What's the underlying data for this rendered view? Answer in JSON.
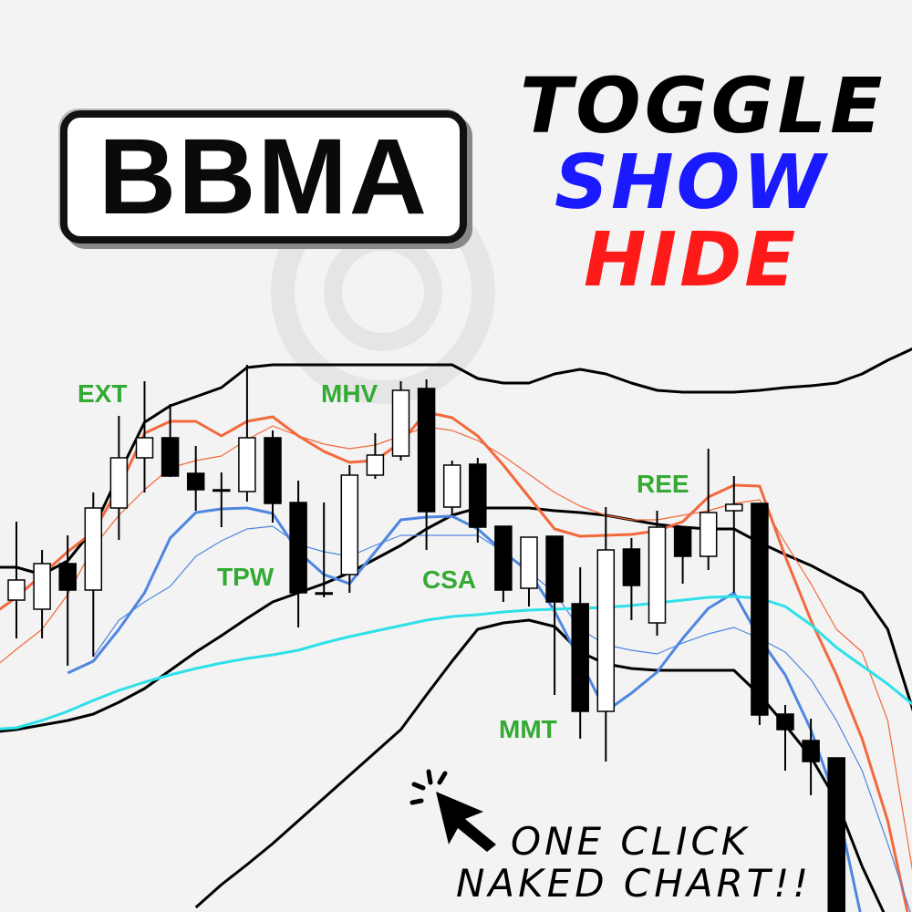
{
  "logo": {
    "text": "BBMA"
  },
  "headline": {
    "line1": "TOGGLE",
    "line2": "SHOW",
    "line3": "HIDE",
    "line2_color": "#1a1aff",
    "line3_color": "#ff1a1a"
  },
  "callout": {
    "line1": "ONE CLICK",
    "line2": "NAKED CHART!!",
    "icon": "cursor-click-icon"
  },
  "colors": {
    "annotation": "#33aa33",
    "bull_body": "#ffffff",
    "bear_body": "#000000",
    "background": "#f3f3f3"
  },
  "chart_data": {
    "type": "candlestick",
    "grid": false,
    "axes_shown": false,
    "annotations": [
      "EXT",
      "MHV",
      "TPW",
      "CSA",
      "REE",
      "MMT"
    ],
    "candles": [
      [
        34.2,
        42.8,
        30.0,
        36.4
      ],
      [
        33.2,
        39.7,
        30.0,
        38.2
      ],
      [
        38.2,
        41.3,
        27.0,
        35.3
      ],
      [
        35.3,
        46.0,
        28.0,
        44.3
      ],
      [
        44.3,
        54.4,
        40.8,
        49.8
      ],
      [
        49.8,
        58.2,
        46.0,
        52.0
      ],
      [
        52.0,
        55.7,
        47.7,
        47.8
      ],
      [
        48.1,
        51.1,
        44.0,
        46.3
      ],
      [
        46.3,
        48.2,
        42.2,
        46.3
      ],
      [
        46.1,
        60.0,
        45.0,
        52.0
      ],
      [
        52.0,
        52.8,
        42.7,
        44.8
      ],
      [
        44.9,
        47.3,
        31.2,
        35.0
      ],
      [
        35.0,
        44.9,
        34.5,
        35.0
      ],
      [
        37.0,
        49.0,
        35.0,
        47.9
      ],
      [
        47.9,
        52.5,
        47.5,
        50.1
      ],
      [
        50.0,
        58.2,
        49.5,
        57.2
      ],
      [
        57.4,
        58.4,
        39.7,
        43.9
      ],
      [
        44.4,
        49.5,
        43.5,
        49.0
      ],
      [
        49.1,
        49.8,
        40.5,
        42.2
      ],
      [
        42.3,
        42.3,
        34.0,
        35.3
      ],
      [
        35.5,
        41.1,
        33.5,
        41.1
      ],
      [
        41.2,
        41.2,
        23.8,
        34.0
      ],
      [
        33.8,
        37.8,
        19.0,
        22.0
      ],
      [
        22.0,
        44.4,
        16.5,
        39.7
      ],
      [
        39.8,
        41.0,
        32.0,
        35.8
      ],
      [
        31.7,
        44.0,
        30.3,
        42.2
      ],
      [
        42.2,
        42.2,
        36.0,
        39.0
      ],
      [
        39.0,
        50.8,
        37.5,
        43.8
      ],
      [
        44.0,
        47.8,
        35.0,
        44.7
      ],
      [
        44.8,
        44.8,
        20.5,
        21.6
      ],
      [
        21.7,
        22.7,
        15.5,
        20.0
      ],
      [
        18.8,
        21.2,
        12.8,
        16.5
      ],
      [
        16.9,
        16.9,
        0,
        0
      ]
    ],
    "candle_fields": [
      "open",
      "high",
      "low",
      "close"
    ],
    "series": [
      {
        "color": "#000000",
        "width": 3,
        "start_bar": -1,
        "values": [
          37.8,
          37.8,
          37.0,
          38.5,
          42.0,
          48.0,
          53.7,
          55.5,
          56.5,
          57.5,
          59.7,
          60,
          60,
          60,
          60,
          60,
          60,
          60,
          60,
          58.5,
          58,
          58,
          59,
          59.5,
          59,
          58,
          57.2,
          57,
          57,
          57,
          57.2,
          57.5,
          57.7,
          58,
          59,
          60.5,
          61.8
        ]
      },
      {
        "color": "#000000",
        "width": 3,
        "start_bar": -1,
        "values": [
          19.7,
          20,
          20.5,
          21,
          21.7,
          23,
          24.5,
          26.5,
          28.5,
          30.3,
          32.2,
          34,
          35,
          36,
          37.2,
          38.7,
          40.2,
          42,
          43.5,
          44.3,
          44.3,
          44.3,
          44,
          43.8,
          43.5,
          43,
          42.5,
          42.2,
          42,
          42,
          40.5,
          39.2,
          38,
          36.5,
          35,
          31,
          22
        ]
      },
      {
        "color": "#000000",
        "width": 3,
        "start_bar": 7,
        "values": [
          0.5,
          3,
          5.2,
          7.5,
          10,
          12.5,
          15,
          17.5,
          20,
          23.8,
          27.5,
          31,
          31.7,
          32,
          31.3,
          28.5,
          27.2,
          26.7,
          26.5,
          26.5,
          26.5,
          26.5,
          23.8,
          20.5,
          17,
          12.2,
          5,
          -1
        ]
      },
      {
        "color": "#f2693c",
        "width": 3,
        "start_bar": -1,
        "values": [
          32.5,
          34.5,
          37,
          39.5,
          41.7,
          46.5,
          52.5,
          53.8,
          53.8,
          52.2,
          53.8,
          54.3,
          52.2,
          50.5,
          49.3,
          49.5,
          51.5,
          54.8,
          54.2,
          52.2,
          49,
          45.5,
          42,
          41.2,
          41.3,
          41.4,
          41.8,
          42.8,
          45.5,
          46.8,
          46.7,
          39,
          32,
          26,
          19,
          10,
          -3
        ]
      },
      {
        "color": "#f2693c",
        "width": 1.2,
        "start_bar": -1,
        "values": [
          26.5,
          28.8,
          31,
          34.8,
          40,
          43.5,
          46.3,
          48.7,
          49.5,
          50,
          51.8,
          53.3,
          52.2,
          51.3,
          50.8,
          51.2,
          52.2,
          53.2,
          52.8,
          51.7,
          50,
          48,
          46,
          44.5,
          43.5,
          43,
          43,
          43.5,
          44,
          44.8,
          45.2,
          40.5,
          36,
          31,
          28.5,
          21,
          4
        ]
      },
      {
        "color": "#4f86e0",
        "width": 3,
        "start_bar": 2,
        "values": [
          26.2,
          27.5,
          31,
          35,
          41,
          43.8,
          44.2,
          44.3,
          43.7,
          39.5,
          37,
          36,
          39.5,
          43,
          43.3,
          43.4,
          42,
          39.5,
          37.3,
          33,
          27.5,
          22,
          24,
          26.3,
          30,
          33.3,
          35,
          30,
          26,
          20,
          12,
          -1
        ]
      },
      {
        "color": "#4f86e0",
        "width": 1.2,
        "start_bar": 3,
        "values": [
          28,
          32,
          34,
          35.7,
          39,
          40.7,
          42,
          42.3,
          40.3,
          39.5,
          39,
          40.2,
          41.3,
          41.3,
          41.3,
          41.3,
          39.5,
          37.3,
          35,
          31,
          29.3,
          28.7,
          28.3,
          29.5,
          30.5,
          31.2,
          30,
          28.5,
          25.5,
          21,
          15.5,
          7.5,
          -1
        ]
      },
      {
        "color": "#2ee0e8",
        "width": 3,
        "start_bar": -1,
        "values": [
          20,
          20.2,
          21,
          22,
          23.2,
          24.3,
          25.2,
          26,
          26.7,
          27.3,
          27.8,
          28.2,
          28.7,
          29.5,
          30.2,
          30.8,
          31.4,
          32,
          32.4,
          32.6,
          32.9,
          33.1,
          33.2,
          33.3,
          33.4,
          33.6,
          33.9,
          34.2,
          34.5,
          34.6,
          34.4,
          33.5,
          31.5,
          29,
          27,
          25,
          22.7
        ]
      }
    ]
  }
}
